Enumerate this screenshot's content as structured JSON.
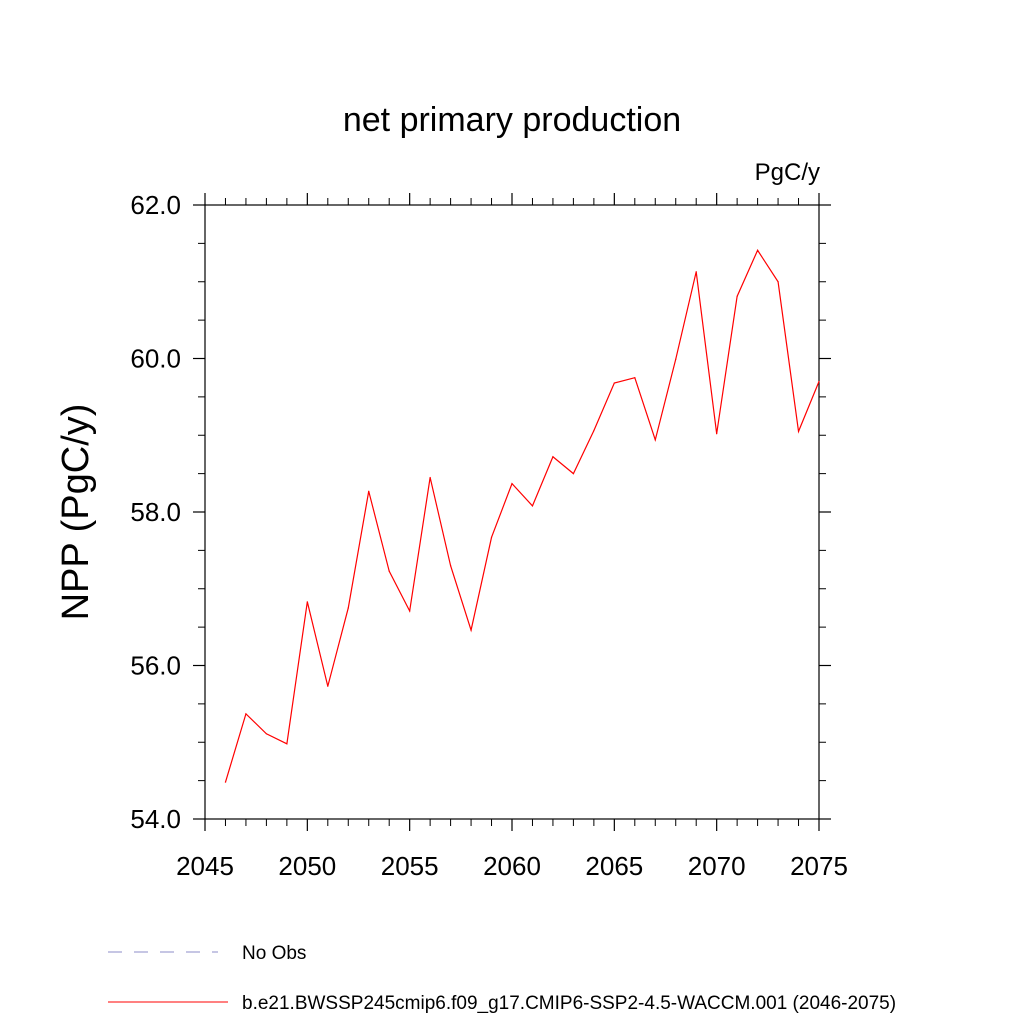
{
  "chart_data": {
    "type": "line",
    "title": "net primary production",
    "units": "PgC/y",
    "xlabel": "",
    "ylabel": "NPP  (PgC/y)",
    "xlim": [
      2045,
      2075
    ],
    "ylim": [
      54.0,
      62.0
    ],
    "x_ticks": [
      "2045",
      "2050",
      "2055",
      "2060",
      "2065",
      "2070",
      "2075"
    ],
    "y_ticks": [
      "54.0",
      "56.0",
      "58.0",
      "60.0",
      "62.0"
    ],
    "series": [
      {
        "name": "b.e21.BWSSP245cmip6.f09_g17.CMIP6-SSP2-4.5-WACCM.001 (2046-2075)",
        "color": "#ff0000",
        "x": [
          2046,
          2047,
          2048,
          2049,
          2050,
          2051,
          2052,
          2053,
          2054,
          2055,
          2056,
          2057,
          2058,
          2059,
          2060,
          2061,
          2062,
          2063,
          2064,
          2065,
          2066,
          2067,
          2068,
          2069,
          2070,
          2071,
          2072,
          2073,
          2074,
          2075
        ],
        "values": [
          54.48,
          55.37,
          55.11,
          54.98,
          56.83,
          55.73,
          56.75,
          58.27,
          57.23,
          56.71,
          58.45,
          57.3,
          56.46,
          57.67,
          58.37,
          58.08,
          58.72,
          58.5,
          59.06,
          59.68,
          59.75,
          58.94,
          59.99,
          61.13,
          59.02,
          60.81,
          61.41,
          61.0,
          59.05,
          59.7
        ]
      }
    ],
    "legend": [
      {
        "label": "No Obs",
        "style": "dashed",
        "color": "#8c8cc8"
      },
      {
        "label": "b.e21.BWSSP245cmip6.f09_g17.CMIP6-SSP2-4.5-WACCM.001 (2046-2075)",
        "style": "solid",
        "color": "#ff0000"
      }
    ]
  }
}
